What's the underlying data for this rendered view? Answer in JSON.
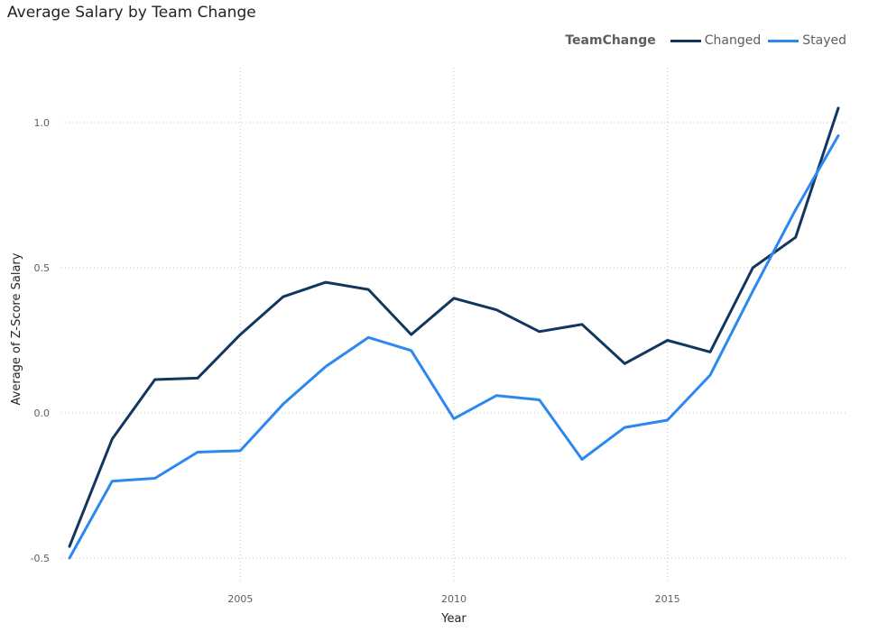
{
  "title": "Average Salary by Team Change",
  "legend": {
    "title": "TeamChange",
    "placement": "top-right"
  },
  "chart_data": {
    "type": "line",
    "title": "Average Salary by Team Change",
    "xlabel": "Year",
    "ylabel": "Average of Z-Score Salary",
    "x": [
      2001,
      2002,
      2003,
      2004,
      2005,
      2006,
      2007,
      2008,
      2009,
      2010,
      2011,
      2012,
      2013,
      2014,
      2015,
      2016,
      2017,
      2018,
      2019
    ],
    "xlim": [
      2001,
      2019
    ],
    "ylim": [
      -0.5,
      1.0
    ],
    "x_ticks": [
      "2005",
      "2010",
      "2015"
    ],
    "y_ticks": [
      "1.0",
      "0.5",
      "0.0",
      "-0.5"
    ],
    "grid": true,
    "legend_position": "top-right",
    "series": [
      {
        "name": "Changed",
        "color": "#12375f",
        "values": [
          -0.46,
          -0.09,
          0.115,
          0.12,
          0.27,
          0.4,
          0.45,
          0.425,
          0.27,
          0.395,
          0.355,
          0.28,
          0.305,
          0.17,
          0.25,
          0.21,
          0.5,
          0.605,
          1.05
        ]
      },
      {
        "name": "Stayed",
        "color": "#2c88f0",
        "values": [
          -0.5,
          -0.235,
          -0.225,
          -0.135,
          -0.13,
          0.03,
          0.16,
          0.26,
          0.215,
          -0.02,
          0.06,
          0.045,
          -0.16,
          -0.05,
          -0.025,
          0.13,
          0.42,
          0.7,
          0.955
        ]
      }
    ]
  }
}
